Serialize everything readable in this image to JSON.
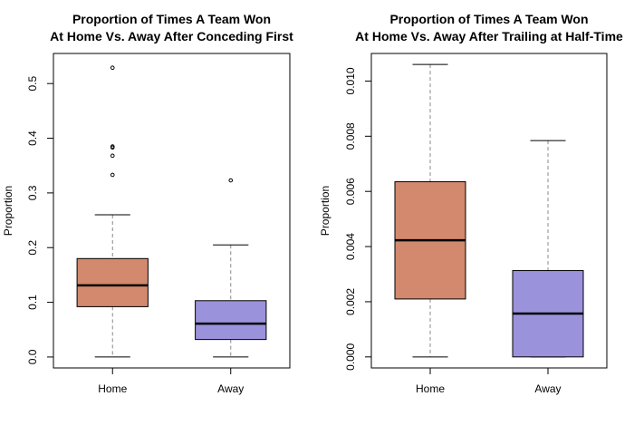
{
  "chart_data": [
    {
      "type": "boxplot",
      "title_lines": [
        "Proportion of Times A Team Won",
        "At Home Vs. Away After Conceding First"
      ],
      "xlabel": "",
      "ylabel": "Proportion",
      "ylim": [
        -0.02,
        0.555
      ],
      "yticks": [
        0.0,
        0.1,
        0.2,
        0.3,
        0.4,
        0.5
      ],
      "ytick_labels": [
        "0.0",
        "0.1",
        "0.2",
        "0.3",
        "0.4",
        "0.5"
      ],
      "categories": [
        "Home",
        "Away"
      ],
      "boxes": [
        {
          "name": "Home",
          "color": "#d2896e",
          "whisker_low": 0.0,
          "q1": 0.092,
          "median": 0.131,
          "q3": 0.18,
          "whisker_high": 0.26,
          "outliers": [
            0.333,
            0.368,
            0.383,
            0.385,
            0.529
          ]
        },
        {
          "name": "Away",
          "color": "#9b92dc",
          "whisker_low": 0.0,
          "q1": 0.032,
          "median": 0.061,
          "q3": 0.103,
          "whisker_high": 0.205,
          "outliers": [
            0.323
          ]
        }
      ]
    },
    {
      "type": "boxplot",
      "title_lines": [
        "Proportion of Times A Team Won",
        "At Home Vs. Away After Trailing at Half-Time"
      ],
      "xlabel": "",
      "ylabel": "Proportion",
      "ylim": [
        -0.0004,
        0.011
      ],
      "yticks": [
        0.0,
        0.002,
        0.004,
        0.006,
        0.008,
        0.01
      ],
      "ytick_labels": [
        "0.000",
        "0.002",
        "0.004",
        "0.006",
        "0.008",
        "0.010"
      ],
      "categories": [
        "Home",
        "Away"
      ],
      "boxes": [
        {
          "name": "Home",
          "color": "#d2896e",
          "whisker_low": 0.0,
          "q1": 0.0021,
          "median": 0.00423,
          "q3": 0.00635,
          "whisker_high": 0.0106,
          "outliers": []
        },
        {
          "name": "Away",
          "color": "#9b92dc",
          "whisker_low": 0.0,
          "q1": 0.0,
          "median": 0.00157,
          "q3": 0.00313,
          "whisker_high": 0.00784,
          "outliers": []
        }
      ]
    }
  ]
}
